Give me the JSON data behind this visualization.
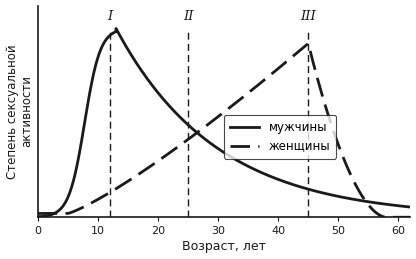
{
  "xlabel": "Возраст, лет",
  "ylabel": "Степень сексуальной\nактивности",
  "xlim": [
    0,
    62
  ],
  "ylim": [
    0,
    1.12
  ],
  "xticks": [
    0,
    10,
    20,
    30,
    40,
    50,
    60
  ],
  "vlines": [
    12,
    25,
    45
  ],
  "vline_labels": [
    "I",
    "II",
    "III"
  ],
  "legend_men": "мужчины",
  "legend_women": "женщины",
  "bg_color": "#ffffff",
  "line_color": "#1a1a1a"
}
